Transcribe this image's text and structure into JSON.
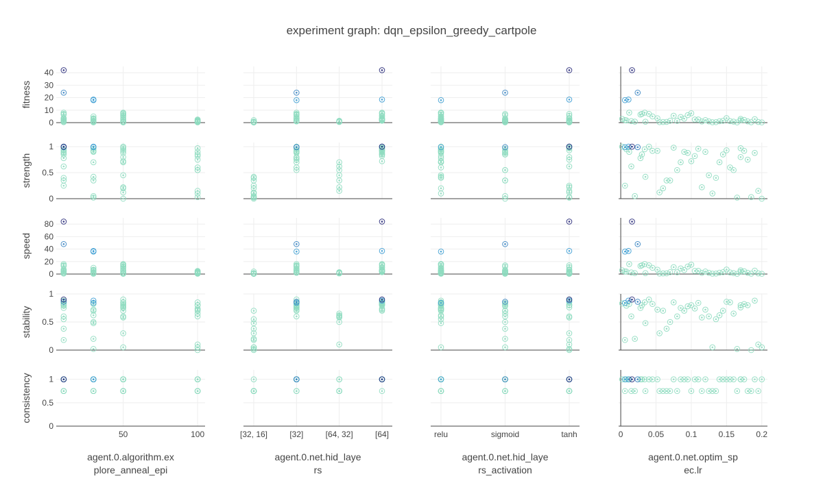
{
  "chart_data": {
    "type": "scatter",
    "title": "experiment graph: dqn_epsilon_greedy_cartpole",
    "rows": [
      {
        "key": "fitness",
        "label": "fitness",
        "ticks": [
          0,
          10,
          20,
          30,
          40
        ],
        "tick_labels": [
          "0",
          "10",
          "20",
          "30",
          "40"
        ],
        "ylim": [
          0,
          45
        ]
      },
      {
        "key": "strength",
        "label": "strength",
        "ticks": [
          0,
          0.5,
          1
        ],
        "tick_labels": [
          "0",
          "0.5",
          "1"
        ],
        "ylim": [
          0,
          1.08
        ]
      },
      {
        "key": "speed",
        "label": "speed",
        "ticks": [
          0,
          20,
          40,
          60,
          80
        ],
        "tick_labels": [
          "0",
          "20",
          "40",
          "60",
          "80"
        ],
        "ylim": [
          0,
          90
        ]
      },
      {
        "key": "stability",
        "label": "stability",
        "ticks": [
          0,
          0.5,
          1
        ],
        "tick_labels": [
          "0",
          "0.5",
          "1"
        ],
        "ylim": [
          0,
          1
        ]
      },
      {
        "key": "consistency",
        "label": "consistency",
        "ticks": [
          0,
          0.5,
          1
        ],
        "tick_labels": [
          "0",
          "0.5",
          "1"
        ],
        "ylim": [
          0,
          1.2
        ]
      }
    ],
    "columns": [
      {
        "label_lines": [
          "agent.0.algorithm.ex",
          "plore_anneal_epi"
        ],
        "scale": "linear",
        "xlim": [
          5,
          105
        ],
        "ticks": [
          50,
          100
        ],
        "tick_labels": [
          "50",
          "100"
        ],
        "zero_line": false
      },
      {
        "label_lines": [
          "agent.0.net.hid_laye",
          "rs"
        ],
        "scale": "category",
        "categories": [
          "[32, 16]",
          "[32]",
          "[64, 32]",
          "[64]"
        ],
        "zero_line": false
      },
      {
        "label_lines": [
          "agent.0.net.hid_laye",
          "rs_activation"
        ],
        "scale": "category",
        "categories": [
          "relu",
          "sigmoid",
          "tanh"
        ],
        "zero_line": false
      },
      {
        "label_lines": [
          "agent.0.net.optim_sp",
          "ec.lr"
        ],
        "scale": "linear",
        "xlim": [
          -0.003,
          0.208
        ],
        "ticks": [
          0,
          0.05,
          0.1,
          0.15,
          0.2
        ],
        "tick_labels": [
          "0",
          "0.05",
          "0.1",
          "0.15",
          "0.2"
        ],
        "zero_line": true
      }
    ],
    "color_scale": {
      "low": "#8fdcc0",
      "mid": "#3a9bd5",
      "high": "#2c2f7c"
    },
    "points": [
      {
        "x": [
          10,
          "[64]",
          "tanh",
          0.016
        ],
        "fitness": 42,
        "strength": 1.0,
        "speed": 84,
        "stability": 0.9,
        "consistency": 1.0
      },
      {
        "x": [
          10,
          "[32]",
          "sigmoid",
          0.024
        ],
        "fitness": 24,
        "strength": 0.99,
        "speed": 48,
        "stability": 0.86,
        "consistency": 1.0
      },
      {
        "x": [
          30,
          "[32]",
          "relu",
          0.006
        ],
        "fitness": 18,
        "strength": 0.99,
        "speed": 36,
        "stability": 0.84,
        "consistency": 1.0
      },
      {
        "x": [
          30,
          "[64]",
          "tanh",
          0.011
        ],
        "fitness": 18.5,
        "strength": 1.0,
        "speed": 37,
        "stability": 0.88,
        "consistency": 1.0
      },
      {
        "x": [
          10,
          "[32]",
          "relu",
          0.012
        ],
        "fitness": 8,
        "strength": 0.9,
        "speed": 16,
        "stability": 0.82,
        "consistency": 1.0
      },
      {
        "x": [
          10,
          "[64]",
          "sigmoid",
          0.03
        ],
        "fitness": 7,
        "strength": 0.85,
        "speed": 14,
        "stability": 0.8,
        "consistency": 1.0
      },
      {
        "x": [
          10,
          "[32]",
          "relu",
          0.028
        ],
        "fitness": 6.5,
        "strength": 0.78,
        "speed": 13,
        "stability": 0.75,
        "consistency": 1.0
      },
      {
        "x": [
          50,
          "[64]",
          "relu",
          0.034
        ],
        "fitness": 8,
        "strength": 0.95,
        "speed": 16,
        "stability": 0.85,
        "consistency": 1.0
      },
      {
        "x": [
          50,
          "[32]",
          "tanh",
          0.04
        ],
        "fitness": 7,
        "strength": 1.0,
        "speed": 14,
        "stability": 0.9,
        "consistency": 1.0
      },
      {
        "x": [
          50,
          "[64]",
          "relu",
          0.1
        ],
        "fitness": 7.5,
        "strength": 0.72,
        "speed": 15,
        "stability": 0.8,
        "consistency": 0.75
      },
      {
        "x": [
          50,
          "[32]",
          "sigmoid",
          0.095
        ],
        "fitness": 6,
        "strength": 0.88,
        "speed": 12,
        "stability": 0.78,
        "consistency": 1.0
      },
      {
        "x": [
          30,
          "[64]",
          "relu",
          0.045
        ],
        "fitness": 5,
        "strength": 0.92,
        "speed": 10,
        "stability": 0.82,
        "consistency": 1.0
      },
      {
        "x": [
          10,
          "[64]",
          "relu",
          0.002
        ],
        "fitness": 3,
        "strength": 1.0,
        "speed": 6,
        "stability": 0.83,
        "consistency": 1.0
      },
      {
        "x": [
          10,
          "[32, 16]",
          "tanh",
          0.006
        ],
        "fitness": 2,
        "strength": 0.25,
        "speed": 4,
        "stability": 0.18,
        "consistency": 0.75
      },
      {
        "x": [
          30,
          "[32]",
          "relu",
          0.052
        ],
        "fitness": 3.5,
        "strength": 0.92,
        "speed": 7,
        "stability": 0.72,
        "consistency": 1.0
      },
      {
        "x": [
          30,
          "[64, 32]",
          "sigmoid",
          0.07
        ],
        "fitness": 1.5,
        "strength": 0.35,
        "speed": 3,
        "stability": 0.5,
        "consistency": 0.75
      },
      {
        "x": [
          100,
          "[64]",
          "relu",
          0.12
        ],
        "fitness": 2,
        "strength": 0.9,
        "speed": 4,
        "stability": 0.72,
        "consistency": 1.0
      },
      {
        "x": [
          100,
          "[32]",
          "tanh",
          0.18
        ],
        "fitness": 1,
        "strength": 0.75,
        "speed": 2,
        "stability": 0.8,
        "consistency": 0.75
      },
      {
        "x": [
          50,
          "[32, 16]",
          "relu",
          0.06
        ],
        "fitness": 0.5,
        "strength": 0.2,
        "speed": 1,
        "stability": 0.7,
        "consistency": 0.75
      },
      {
        "x": [
          100,
          "[64, 32]",
          "sigmoid",
          0.16
        ],
        "fitness": 0.8,
        "strength": 0.55,
        "speed": 1.5,
        "stability": 0.65,
        "consistency": 1.0
      },
      {
        "x": [
          10,
          "[32]",
          "relu",
          0.008
        ],
        "fitness": 1.8,
        "strength": 0.95,
        "speed": 4,
        "stability": 0.79,
        "consistency": 1.0
      },
      {
        "x": [
          10,
          "[64, 32]",
          "tanh",
          0.015
        ],
        "fitness": 1.2,
        "strength": 0.62,
        "speed": 2.5,
        "stability": 0.6,
        "consistency": 0.75
      },
      {
        "x": [
          30,
          "[32, 16]",
          "sigmoid",
          0.02
        ],
        "fitness": 0.8,
        "strength": 0.05,
        "speed": 1.5,
        "stability": 0.2,
        "consistency": 0.75
      },
      {
        "x": [
          50,
          "[64]",
          "tanh",
          0.075
        ],
        "fitness": 5.5,
        "strength": 0.98,
        "speed": 11,
        "stability": 0.85,
        "consistency": 1.0
      },
      {
        "x": [
          50,
          "[32]",
          "relu",
          0.085
        ],
        "fitness": 4.5,
        "strength": 0.7,
        "speed": 9,
        "stability": 0.75,
        "consistency": 1.0
      },
      {
        "x": [
          100,
          "[32, 16]",
          "relu",
          0.13
        ],
        "fitness": 0.3,
        "strength": 0.1,
        "speed": 0.6,
        "stability": 0.05,
        "consistency": 0.75
      },
      {
        "x": [
          100,
          "[64]",
          "sigmoid",
          0.145
        ],
        "fitness": 1.5,
        "strength": 0.85,
        "speed": 3,
        "stability": 0.7,
        "consistency": 1.0
      },
      {
        "x": [
          100,
          "[64, 32]",
          "tanh",
          0.195
        ],
        "fitness": 0.5,
        "strength": 0.15,
        "speed": 1,
        "stability": 0.1,
        "consistency": 0.75
      },
      {
        "x": [
          30,
          "[64]",
          "sigmoid",
          0.11
        ],
        "fitness": 2.5,
        "strength": 0.96,
        "speed": 5,
        "stability": 0.84,
        "consistency": 1.0
      },
      {
        "x": [
          50,
          "[64, 32]",
          "relu",
          0.125
        ],
        "fitness": 1,
        "strength": 0.45,
        "speed": 2,
        "stability": 0.6,
        "consistency": 0.75
      },
      {
        "x": [
          10,
          "[32, 16]",
          "relu",
          0.135
        ],
        "fitness": 0.4,
        "strength": 0.4,
        "speed": 0.8,
        "stability": 0.55,
        "consistency": 0.75
      },
      {
        "x": [
          100,
          "[32]",
          "relu",
          0.155
        ],
        "fitness": 1.2,
        "strength": 0.6,
        "speed": 2.5,
        "stability": 0.85,
        "consistency": 1.0
      },
      {
        "x": [
          30,
          "[32, 16]",
          "tanh",
          0.165
        ],
        "fitness": 0.2,
        "strength": 0.02,
        "speed": 0.4,
        "stability": 0.02,
        "consistency": 0.75
      },
      {
        "x": [
          50,
          "[64]",
          "sigmoid",
          0.175
        ],
        "fitness": 2.2,
        "strength": 0.92,
        "speed": 4.5,
        "stability": 0.82,
        "consistency": 1.0
      },
      {
        "x": [
          100,
          "[32, 16]",
          "tanh",
          0.185
        ],
        "fitness": 0.3,
        "strength": 0.03,
        "speed": 0.6,
        "stability": 0.0,
        "consistency": 0.75
      },
      {
        "x": [
          10,
          "[64]",
          "relu",
          0.19
        ],
        "fitness": 2.8,
        "strength": 0.88,
        "speed": 5.5,
        "stability": 0.88,
        "consistency": 1.0
      },
      {
        "x": [
          50,
          "[32, 16]",
          "sigmoid",
          0.2
        ],
        "fitness": 0.2,
        "strength": 0.0,
        "speed": 0.4,
        "stability": 0.05,
        "consistency": 1.0
      },
      {
        "x": [
          30,
          "[64, 32]",
          "relu",
          0.14
        ],
        "fitness": 1.1,
        "strength": 0.7,
        "speed": 2.2,
        "stability": 0.62,
        "consistency": 1.0
      },
      {
        "x": [
          50,
          "[32]",
          "tanh",
          0.17
        ],
        "fitness": 3,
        "strength": 0.8,
        "speed": 6,
        "stability": 0.76,
        "consistency": 1.0
      },
      {
        "x": [
          100,
          "[64]",
          "relu",
          0.105
        ],
        "fitness": 2.5,
        "strength": 0.82,
        "speed": 5,
        "stability": 0.74,
        "consistency": 1.0
      },
      {
        "x": [
          10,
          "[32, 16]",
          "sigmoid",
          0.065
        ],
        "fitness": 0.6,
        "strength": 0.35,
        "speed": 1.2,
        "stability": 0.38,
        "consistency": 0.75
      },
      {
        "x": [
          30,
          "[32]",
          "sigmoid",
          0.09
        ],
        "fitness": 3.2,
        "strength": 0.9,
        "speed": 6.4,
        "stability": 0.7,
        "consistency": 1.0
      },
      {
        "x": [
          100,
          "[32]",
          "sigmoid",
          0.08
        ],
        "fitness": 1.4,
        "strength": 0.55,
        "speed": 2.8,
        "stability": 0.6,
        "consistency": 0.75
      },
      {
        "x": [
          50,
          "[64, 32]",
          "tanh",
          0.115
        ],
        "fitness": 0.9,
        "strength": 0.22,
        "speed": 1.8,
        "stability": 0.58,
        "consistency": 0.75
      },
      {
        "x": [
          10,
          "[64]",
          "tanh",
          0.15
        ],
        "fitness": 3.6,
        "strength": 0.93,
        "speed": 7.2,
        "stability": 0.86,
        "consistency": 1.0
      },
      {
        "x": [
          30,
          "[32, 16]",
          "relu",
          0.035
        ],
        "fitness": 0.7,
        "strength": 0.42,
        "speed": 1.4,
        "stability": 0.48,
        "consistency": 0.75
      },
      {
        "x": [
          50,
          "[32, 16]",
          "tanh",
          0.055
        ],
        "fitness": 0.4,
        "strength": 0.12,
        "speed": 0.8,
        "stability": 0.3,
        "consistency": 0.75
      },
      {
        "x": [
          100,
          "[64]",
          "tanh",
          0.17
        ],
        "fitness": 1.8,
        "strength": 0.97,
        "speed": 3.6,
        "stability": 0.8,
        "consistency": 1.0
      }
    ]
  }
}
